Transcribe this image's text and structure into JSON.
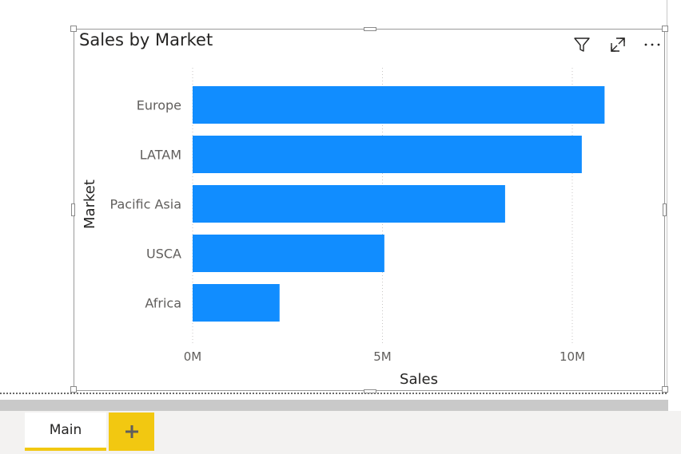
{
  "visual": {
    "title": "Sales by Market",
    "icons": [
      "filter-icon",
      "focus-mode-icon",
      "more-options-icon"
    ]
  },
  "chart_data": {
    "type": "bar",
    "orientation": "horizontal",
    "categories": [
      "Europe",
      "LATAM",
      "Pacific Asia",
      "USCA",
      "Africa"
    ],
    "values": [
      10850000,
      10250000,
      8230000,
      5050000,
      2290000
    ],
    "xlabel": "Sales",
    "ylabel": "Market",
    "xlim": [
      0,
      12500000
    ],
    "x_ticks": [
      0,
      5000000,
      10000000
    ],
    "x_tick_labels": [
      "0M",
      "5M",
      "10M"
    ],
    "grid": "vertical-dotted",
    "bar_color": "#118dff"
  },
  "tabs": {
    "main_label": "Main",
    "add_label": "+"
  },
  "colors": {
    "accent": "#f2c811",
    "bar": "#118dff"
  }
}
